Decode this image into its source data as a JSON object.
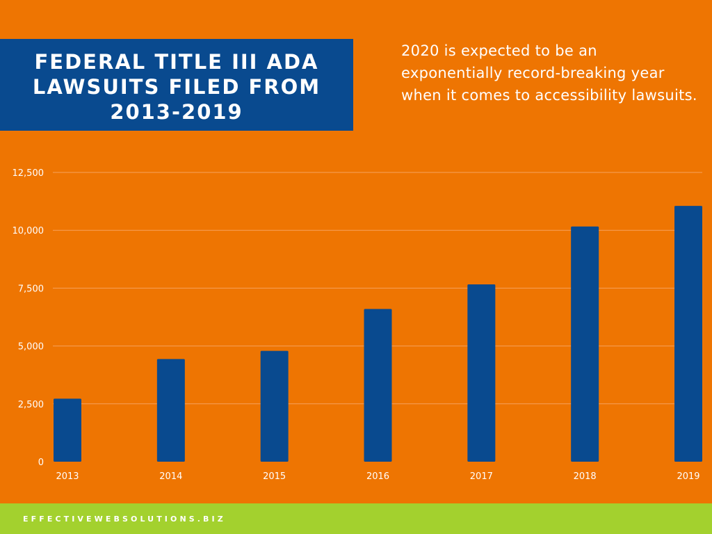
{
  "title": "FEDERAL TITLE III ADA LAWSUITS FILED FROM 2013-2019",
  "subtitle": "2020 is expected to be an exponentially record-breaking year when it comes to accessibility lawsuits.",
  "footer": {
    "website": "EFFECTIVEWEBSOLUTIONS.BIZ"
  },
  "colors": {
    "background": "#EE7502",
    "title_box": "#094A8F",
    "bars": "#094A8F",
    "gridline": "#F6A25C",
    "footer_bar": "#A3D12E",
    "text": "#FFFFFF"
  },
  "chart_data": {
    "type": "bar",
    "categories": [
      "2013",
      "2014",
      "2015",
      "2016",
      "2017",
      "2018",
      "2019"
    ],
    "values": [
      2722,
      4436,
      4789,
      6601,
      7663,
      10163,
      11053
    ],
    "ylim": [
      0,
      12500
    ],
    "yticks": [
      0,
      2500,
      5000,
      7500,
      10000,
      12500
    ],
    "ytick_labels": [
      "0",
      "2,500",
      "5,000",
      "7,500",
      "10,000",
      "12,500"
    ],
    "grid": true,
    "legend": "none"
  }
}
